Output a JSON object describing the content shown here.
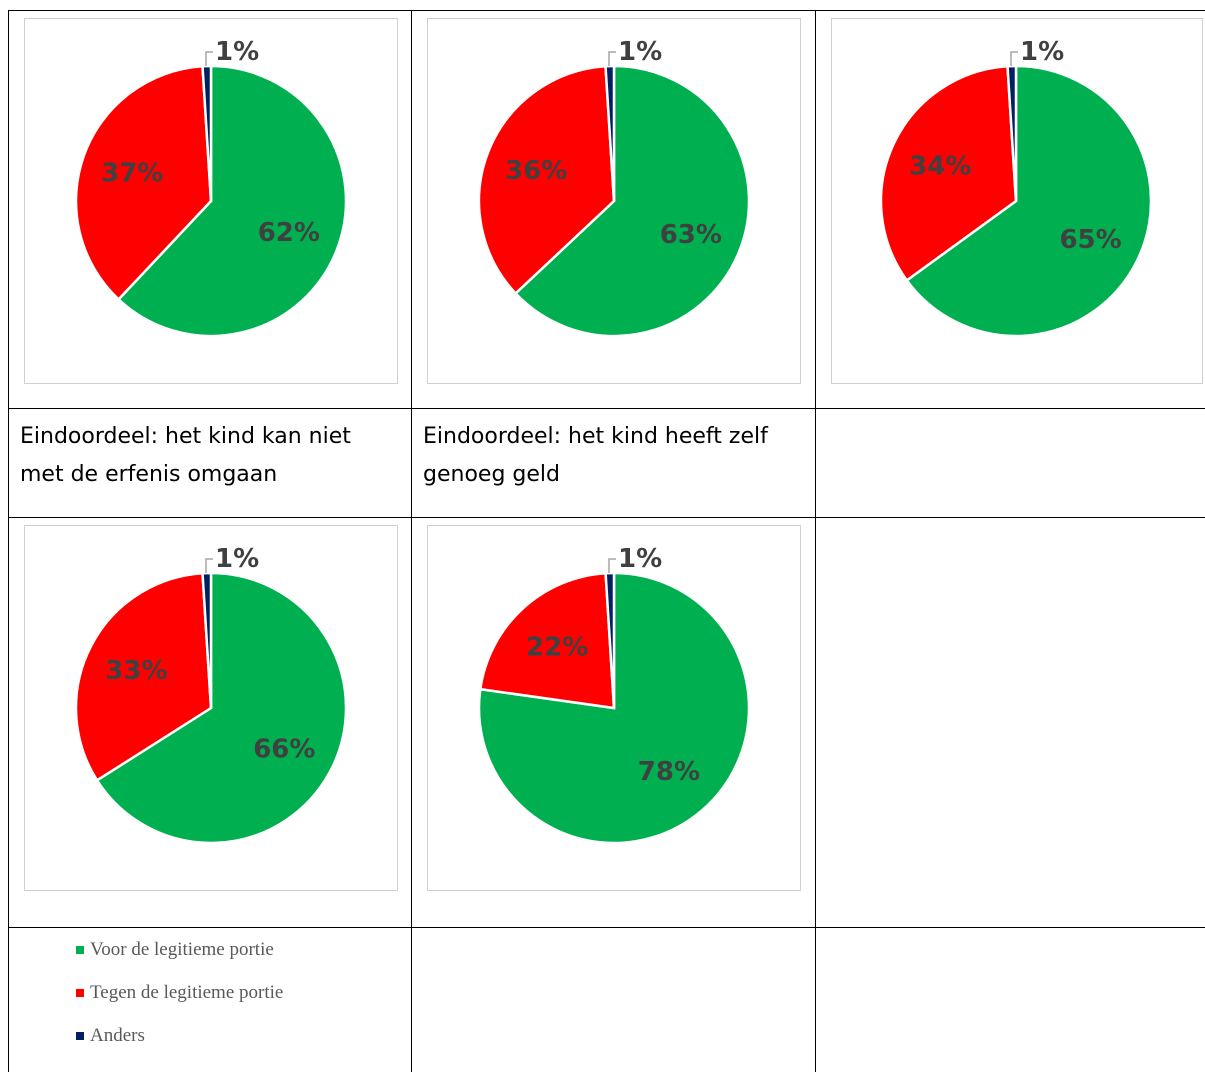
{
  "chart_data": [
    {
      "type": "pie",
      "categories": [
        "Voor de legitieme portie",
        "Tegen de legitieme portie",
        "Anders"
      ],
      "values": [
        62,
        37,
        1
      ],
      "labels": [
        "62%",
        "37%",
        "1%"
      ],
      "caption": ""
    },
    {
      "type": "pie",
      "categories": [
        "Voor de legitieme portie",
        "Tegen de legitieme portie",
        "Anders"
      ],
      "values": [
        63,
        36,
        1
      ],
      "labels": [
        "63%",
        "36%",
        "1%"
      ],
      "caption": ""
    },
    {
      "type": "pie",
      "categories": [
        "Voor de legitieme portie",
        "Tegen de legitieme portie",
        "Anders"
      ],
      "values": [
        65,
        34,
        1
      ],
      "labels": [
        "65%",
        "34%",
        "1%"
      ],
      "caption": ""
    },
    {
      "type": "pie",
      "categories": [
        "Voor de legitieme portie",
        "Tegen de legitieme portie",
        "Anders"
      ],
      "values": [
        66,
        33,
        1
      ],
      "labels": [
        "66%",
        "33%",
        "1%"
      ],
      "caption": "Eindoordeel: het kind kan niet met de erfenis omgaan"
    },
    {
      "type": "pie",
      "categories": [
        "Voor de legitieme portie",
        "Tegen de legitieme portie",
        "Anders"
      ],
      "values": [
        78,
        22,
        1
      ],
      "labels": [
        "78%",
        "22%",
        "1%"
      ],
      "caption": "Eindoordeel: het kind heeft zelf genoeg geld"
    }
  ],
  "colors": {
    "voor": "#00B050",
    "tegen": "#FF0000",
    "anders": "#002060"
  },
  "captions": {
    "left": "Eindoordeel: het kind kan niet met de erfenis omgaan",
    "middle": "Eindoordeel: het kind heeft zelf genoeg geld"
  },
  "legend": [
    {
      "label": "Voor de legitieme portie",
      "color": "#00B050"
    },
    {
      "label": "Tegen de legitieme portie",
      "color": "#FF0000"
    },
    {
      "label": "Anders",
      "color": "#002060"
    }
  ]
}
